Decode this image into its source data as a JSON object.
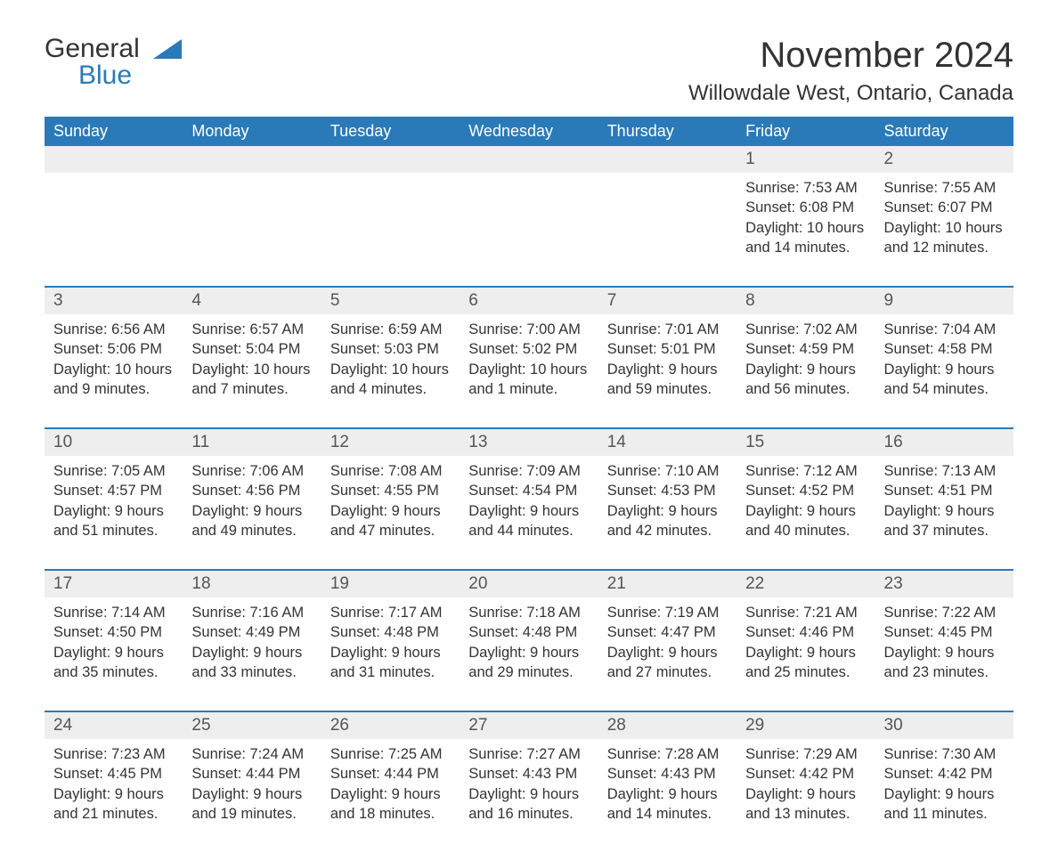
{
  "brand": {
    "word1": "General",
    "word2": "Blue"
  },
  "title": "November 2024",
  "location": "Willowdale West, Ontario, Canada",
  "colors": {
    "header_bg": "#2a7ab9",
    "header_text": "#ffffff",
    "daynum_bg": "#eeeeee",
    "rule": "#2a7ab9",
    "body_text": "#333333",
    "page_bg": "#ffffff"
  },
  "typography": {
    "title_fontsize": 40,
    "location_fontsize": 24,
    "header_fontsize": 18,
    "daynum_fontsize": 19,
    "body_fontsize": 16.5
  },
  "day_headers": [
    "Sunday",
    "Monday",
    "Tuesday",
    "Wednesday",
    "Thursday",
    "Friday",
    "Saturday"
  ],
  "weeks": [
    {
      "days": [
        null,
        null,
        null,
        null,
        null,
        {
          "n": "1",
          "sunrise": "7:53 AM",
          "sunset": "6:08 PM",
          "daylight": "10 hours and 14 minutes."
        },
        {
          "n": "2",
          "sunrise": "7:55 AM",
          "sunset": "6:07 PM",
          "daylight": "10 hours and 12 minutes."
        }
      ]
    },
    {
      "days": [
        {
          "n": "3",
          "sunrise": "6:56 AM",
          "sunset": "5:06 PM",
          "daylight": "10 hours and 9 minutes."
        },
        {
          "n": "4",
          "sunrise": "6:57 AM",
          "sunset": "5:04 PM",
          "daylight": "10 hours and 7 minutes."
        },
        {
          "n": "5",
          "sunrise": "6:59 AM",
          "sunset": "5:03 PM",
          "daylight": "10 hours and 4 minutes."
        },
        {
          "n": "6",
          "sunrise": "7:00 AM",
          "sunset": "5:02 PM",
          "daylight": "10 hours and 1 minute."
        },
        {
          "n": "7",
          "sunrise": "7:01 AM",
          "sunset": "5:01 PM",
          "daylight": "9 hours and 59 minutes."
        },
        {
          "n": "8",
          "sunrise": "7:02 AM",
          "sunset": "4:59 PM",
          "daylight": "9 hours and 56 minutes."
        },
        {
          "n": "9",
          "sunrise": "7:04 AM",
          "sunset": "4:58 PM",
          "daylight": "9 hours and 54 minutes."
        }
      ]
    },
    {
      "days": [
        {
          "n": "10",
          "sunrise": "7:05 AM",
          "sunset": "4:57 PM",
          "daylight": "9 hours and 51 minutes."
        },
        {
          "n": "11",
          "sunrise": "7:06 AM",
          "sunset": "4:56 PM",
          "daylight": "9 hours and 49 minutes."
        },
        {
          "n": "12",
          "sunrise": "7:08 AM",
          "sunset": "4:55 PM",
          "daylight": "9 hours and 47 minutes."
        },
        {
          "n": "13",
          "sunrise": "7:09 AM",
          "sunset": "4:54 PM",
          "daylight": "9 hours and 44 minutes."
        },
        {
          "n": "14",
          "sunrise": "7:10 AM",
          "sunset": "4:53 PM",
          "daylight": "9 hours and 42 minutes."
        },
        {
          "n": "15",
          "sunrise": "7:12 AM",
          "sunset": "4:52 PM",
          "daylight": "9 hours and 40 minutes."
        },
        {
          "n": "16",
          "sunrise": "7:13 AM",
          "sunset": "4:51 PM",
          "daylight": "9 hours and 37 minutes."
        }
      ]
    },
    {
      "days": [
        {
          "n": "17",
          "sunrise": "7:14 AM",
          "sunset": "4:50 PM",
          "daylight": "9 hours and 35 minutes."
        },
        {
          "n": "18",
          "sunrise": "7:16 AM",
          "sunset": "4:49 PM",
          "daylight": "9 hours and 33 minutes."
        },
        {
          "n": "19",
          "sunrise": "7:17 AM",
          "sunset": "4:48 PM",
          "daylight": "9 hours and 31 minutes."
        },
        {
          "n": "20",
          "sunrise": "7:18 AM",
          "sunset": "4:48 PM",
          "daylight": "9 hours and 29 minutes."
        },
        {
          "n": "21",
          "sunrise": "7:19 AM",
          "sunset": "4:47 PM",
          "daylight": "9 hours and 27 minutes."
        },
        {
          "n": "22",
          "sunrise": "7:21 AM",
          "sunset": "4:46 PM",
          "daylight": "9 hours and 25 minutes."
        },
        {
          "n": "23",
          "sunrise": "7:22 AM",
          "sunset": "4:45 PM",
          "daylight": "9 hours and 23 minutes."
        }
      ]
    },
    {
      "days": [
        {
          "n": "24",
          "sunrise": "7:23 AM",
          "sunset": "4:45 PM",
          "daylight": "9 hours and 21 minutes."
        },
        {
          "n": "25",
          "sunrise": "7:24 AM",
          "sunset": "4:44 PM",
          "daylight": "9 hours and 19 minutes."
        },
        {
          "n": "26",
          "sunrise": "7:25 AM",
          "sunset": "4:44 PM",
          "daylight": "9 hours and 18 minutes."
        },
        {
          "n": "27",
          "sunrise": "7:27 AM",
          "sunset": "4:43 PM",
          "daylight": "9 hours and 16 minutes."
        },
        {
          "n": "28",
          "sunrise": "7:28 AM",
          "sunset": "4:43 PM",
          "daylight": "9 hours and 14 minutes."
        },
        {
          "n": "29",
          "sunrise": "7:29 AM",
          "sunset": "4:42 PM",
          "daylight": "9 hours and 13 minutes."
        },
        {
          "n": "30",
          "sunrise": "7:30 AM",
          "sunset": "4:42 PM",
          "daylight": "9 hours and 11 minutes."
        }
      ]
    }
  ],
  "labels": {
    "sunrise": "Sunrise:",
    "sunset": "Sunset:",
    "daylight": "Daylight:"
  }
}
